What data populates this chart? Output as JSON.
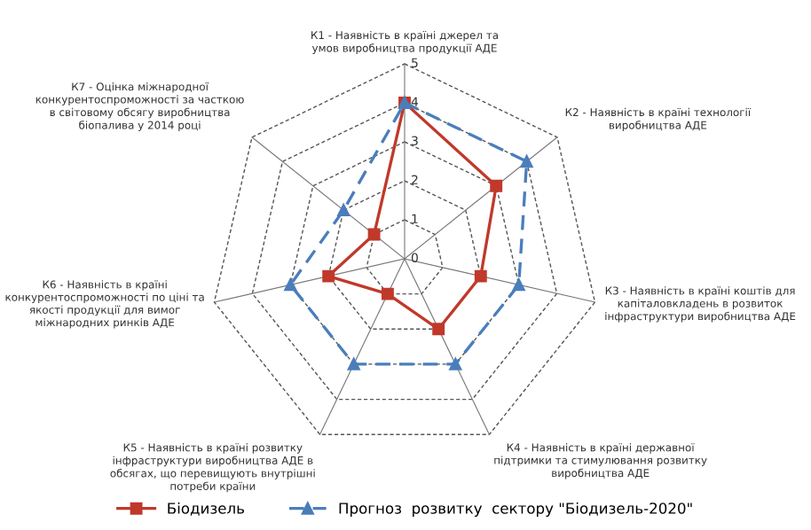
{
  "chart_data": {
    "type": "radar",
    "categories": [
      "К1 - Наявність в країні джерел та\nумов виробництва продукції АДЕ",
      "К2 - Наявність в країні технології\nвиробництва АДЕ",
      "К3 - Наявність в країні коштів для\nкапіталовкладень в розвиток\nінфраструктури виробництва АДЕ",
      "К4 - Наявність в країні державної\nпідтримки та стимулювання розвитку\nвиробництва АДЕ",
      "К5 - Наявність в країні розвитку\nінфраструктури виробництва АДЕ в\nобсягах, що перевищують внутрішні\nпотреби країни",
      "К6 - Наявність в країні\nконкурентоспроможності по ціні та\nякості продукції для вимог\nміжнародних ринків АДЕ",
      "К7 - Оцінка міжнародної\nконкурентоспроможності за часткою\nв світовому обсягу виробництва\nбіопалива у 2014 році"
    ],
    "series": [
      {
        "name": "Біодизель",
        "color": "#c0392b",
        "values": [
          4,
          3,
          2,
          2,
          1,
          2,
          1
        ],
        "marker": "square",
        "line_style": "solid"
      },
      {
        "name": "Прогноз  розвитку  сектору \"Біодизель-2020\"",
        "color": "#4a7ebb",
        "values": [
          4,
          4,
          3,
          3,
          3,
          3,
          2
        ],
        "marker": "triangle",
        "line_style": "dashed"
      }
    ],
    "ylim": [
      0,
      5
    ],
    "yticks": [
      0,
      1,
      2,
      3,
      4,
      5
    ],
    "grid": true,
    "legend": "bottom"
  }
}
